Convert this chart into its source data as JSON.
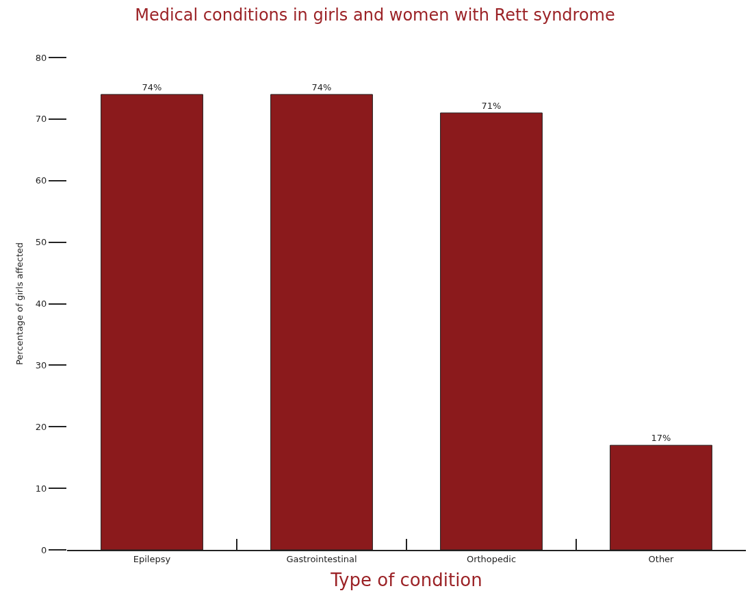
{
  "chart_data": {
    "type": "bar",
    "title": "Medical conditions in girls and women with Rett syndrome",
    "xlabel": "Type of condition",
    "ylabel": "Percentage of girls affected",
    "categories": [
      "Epilepsy",
      "Gastrointestinal",
      "Orthopedic",
      "Other"
    ],
    "values": [
      74,
      74,
      71,
      17
    ],
    "value_labels": [
      "74%",
      "74%",
      "71%",
      "17%"
    ],
    "color": "#8b1a1c",
    "ylim": [
      0,
      80
    ],
    "yticks": [
      0,
      10,
      20,
      30,
      40,
      50,
      60,
      70,
      80
    ]
  }
}
